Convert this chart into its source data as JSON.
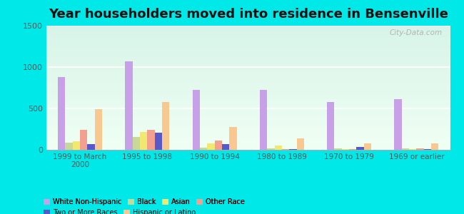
{
  "title": "Year householders moved into residence in Bensenville",
  "categories": [
    "1999 to March\n2000",
    "1995 to 1998",
    "1990 to 1994",
    "1980 to 1989",
    "1970 to 1979",
    "1969 or earlier"
  ],
  "series": {
    "White Non-Hispanic": {
      "values": [
        880,
        1065,
        720,
        720,
        580,
        615
      ],
      "color": "#c8a0e8"
    },
    "Black": {
      "values": [
        90,
        155,
        30,
        15,
        15,
        15
      ],
      "color": "#c8d898"
    },
    "Asian": {
      "values": [
        105,
        215,
        80,
        55,
        10,
        10
      ],
      "color": "#f0e870"
    },
    "Other Race": {
      "values": [
        240,
        245,
        115,
        10,
        10,
        15
      ],
      "color": "#f4a090"
    },
    "Two or More Races": {
      "values": [
        70,
        205,
        65,
        10,
        35,
        10
      ],
      "color": "#5858c8"
    },
    "Hispanic or Latino": {
      "values": [
        495,
        575,
        280,
        140,
        75,
        80
      ],
      "color": "#f8c890"
    }
  },
  "bar_order": [
    "White Non-Hispanic",
    "Black",
    "Asian",
    "Other Race",
    "Two or More Races",
    "Hispanic or Latino"
  ],
  "legend_row1": [
    "White Non-Hispanic",
    "Black",
    "Asian",
    "Other Race"
  ],
  "legend_row2": [
    "Two or More Races",
    "Hispanic or Latino"
  ],
  "ylim": [
    0,
    1500
  ],
  "yticks": [
    0,
    500,
    1000,
    1500
  ],
  "outer_bg": "#00e8e8",
  "plot_bg_top": "#d8f4e8",
  "plot_bg_bottom": "#f0fff4",
  "watermark": "City-Data.com",
  "bar_width": 0.11,
  "title_fontsize": 13
}
